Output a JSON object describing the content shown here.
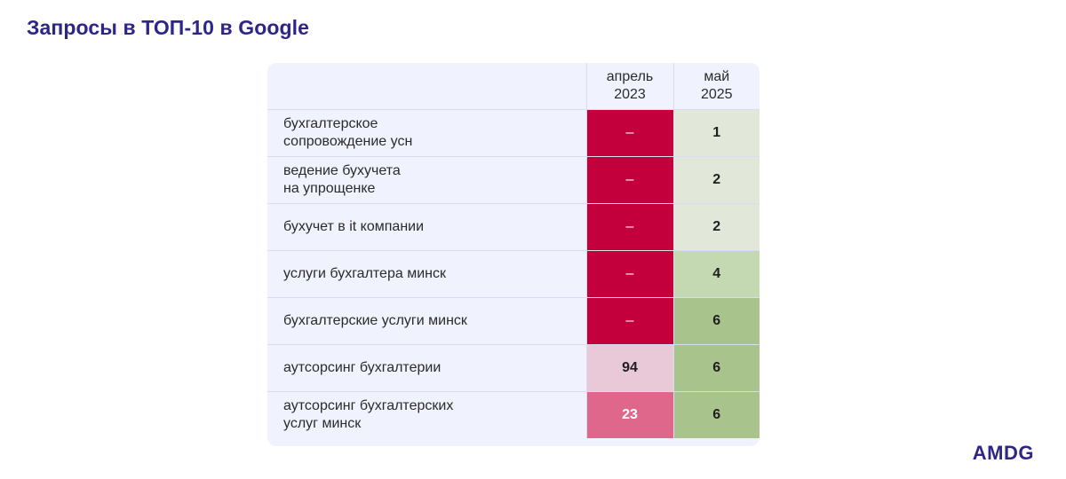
{
  "title": "Запросы в ТОП-10 в Google",
  "header": {
    "col_april": [
      "апрель",
      "2023"
    ],
    "col_may": [
      "май",
      "2025"
    ]
  },
  "rows": [
    {
      "query": [
        "бухгалтерское",
        "сопровождение усн"
      ],
      "april": "–",
      "may": "1"
    },
    {
      "query": [
        "ведение бухучета",
        "на упрощенке"
      ],
      "april": "–",
      "may": "2"
    },
    {
      "query": [
        "бухучет в it компании"
      ],
      "april": "–",
      "may": "2"
    },
    {
      "query": [
        "услуги бухгалтера минск"
      ],
      "april": "–",
      "may": "4"
    },
    {
      "query": [
        "бухгалтерские услуги минск"
      ],
      "april": "–",
      "may": "6"
    },
    {
      "query": [
        "аутсорсинг бухгалтерии"
      ],
      "april": "94",
      "may": "6"
    },
    {
      "query": [
        "аутсорсинг бухгалтерских",
        "услуг минск"
      ],
      "april": "23",
      "may": "6"
    }
  ],
  "colors": {
    "title": "#2e2686",
    "dash_cell": "#c4003c",
    "pale_pink": "#e9c8d7",
    "pink": "#e0678c",
    "green_light": "#e1e8d9",
    "green_mid": "#c4d8b1",
    "green_dark": "#a9c38d"
  },
  "logo": "AMDG"
}
